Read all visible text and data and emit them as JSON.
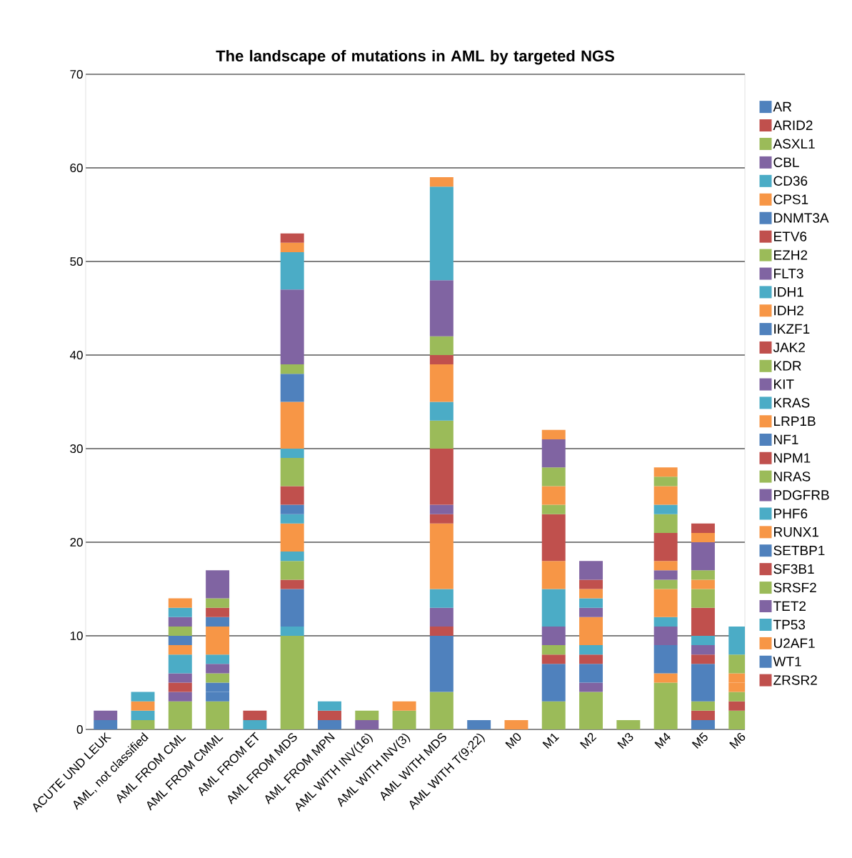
{
  "chart_data": {
    "type": "bar",
    "stacked": true,
    "title": "The landscape of mutations in AML by targeted NGS",
    "categories": [
      "ACUTE UND LEUK",
      "AML, not classified",
      "AML FROM CML",
      "AML FROM CMML",
      "AML FROM ET",
      "AML FROM MDS",
      "AML FROM MPN",
      "AML WITH INV(16)",
      "AML WITH INV(3)",
      "AML WITH MDS",
      "AML WITH T(9;22)",
      "M0",
      "M1",
      "M2",
      "M3",
      "M4",
      "M5",
      "M6"
    ],
    "ylim": [
      0,
      70
    ],
    "yticks": [
      0,
      10,
      20,
      30,
      40,
      50,
      60,
      70
    ],
    "grid": "y",
    "legend": "right",
    "series": [
      {
        "name": "AR",
        "color": "#4f81bd",
        "values": [
          1,
          null,
          null,
          null,
          null,
          null,
          1,
          null,
          null,
          null,
          1,
          null,
          null,
          null,
          null,
          null,
          1,
          null
        ]
      },
      {
        "name": "ARID2",
        "color": "#c0504d",
        "values": [
          null,
          null,
          null,
          null,
          null,
          null,
          1,
          null,
          null,
          null,
          null,
          null,
          null,
          null,
          null,
          null,
          1,
          null
        ]
      },
      {
        "name": "ASXL1",
        "color": "#9bbb59",
        "values": [
          null,
          1,
          3,
          3,
          null,
          10,
          null,
          null,
          2,
          4,
          null,
          null,
          3,
          4,
          1,
          5,
          1,
          2
        ]
      },
      {
        "name": "CBL",
        "color": "#8064a2",
        "values": [
          1,
          null,
          1,
          null,
          null,
          null,
          null,
          1,
          null,
          null,
          null,
          null,
          null,
          1,
          null,
          null,
          null,
          null
        ]
      },
      {
        "name": "CD36",
        "color": "#4bacc6",
        "values": [
          null,
          1,
          null,
          null,
          1,
          1,
          1,
          null,
          null,
          null,
          null,
          null,
          null,
          null,
          null,
          null,
          null,
          null
        ]
      },
      {
        "name": "CPS1",
        "color": "#f79646",
        "values": [
          null,
          1,
          null,
          null,
          null,
          null,
          null,
          null,
          1,
          null,
          null,
          1,
          null,
          null,
          null,
          1,
          null,
          null
        ]
      },
      {
        "name": "DNMT3A",
        "color": "#4f81bd",
        "values": [
          null,
          null,
          null,
          1,
          null,
          4,
          null,
          null,
          null,
          6,
          null,
          null,
          4,
          2,
          null,
          3,
          4,
          null
        ]
      },
      {
        "name": "ETV6",
        "color": "#c0504d",
        "values": [
          null,
          null,
          1,
          null,
          1,
          1,
          null,
          null,
          null,
          1,
          null,
          null,
          1,
          1,
          null,
          null,
          1,
          1
        ]
      },
      {
        "name": "EZH2",
        "color": "#9bbb59",
        "values": [
          null,
          null,
          null,
          null,
          null,
          2,
          null,
          1,
          null,
          null,
          null,
          null,
          1,
          null,
          null,
          null,
          null,
          1
        ]
      },
      {
        "name": "FLT3",
        "color": "#8064a2",
        "values": [
          null,
          null,
          1,
          null,
          null,
          null,
          null,
          null,
          null,
          2,
          null,
          null,
          2,
          null,
          null,
          2,
          1,
          null
        ]
      },
      {
        "name": "IDH1",
        "color": "#4bacc6",
        "values": [
          null,
          1,
          2,
          null,
          null,
          1,
          null,
          null,
          null,
          2,
          null,
          null,
          4,
          1,
          null,
          1,
          1,
          null
        ]
      },
      {
        "name": "IDH2",
        "color": "#f79646",
        "values": [
          null,
          null,
          1,
          null,
          null,
          3,
          null,
          null,
          null,
          7,
          null,
          null,
          3,
          3,
          null,
          3,
          null,
          1
        ]
      },
      {
        "name": "IKZF1",
        "color": "#4f81bd",
        "values": [
          null,
          null,
          1,
          1,
          null,
          null,
          null,
          null,
          null,
          null,
          null,
          null,
          null,
          null,
          null,
          null,
          null,
          null
        ]
      },
      {
        "name": "JAK2",
        "color": "#c0504d",
        "values": [
          null,
          null,
          null,
          null,
          null,
          null,
          null,
          null,
          null,
          1,
          null,
          null,
          5,
          null,
          null,
          null,
          3,
          null
        ]
      },
      {
        "name": "KDR",
        "color": "#9bbb59",
        "values": [
          null,
          null,
          1,
          1,
          null,
          null,
          null,
          null,
          null,
          null,
          null,
          null,
          1,
          null,
          null,
          1,
          2,
          null
        ]
      },
      {
        "name": "KIT",
        "color": "#8064a2",
        "values": [
          null,
          null,
          1,
          1,
          null,
          null,
          null,
          null,
          null,
          1,
          null,
          null,
          null,
          1,
          null,
          1,
          null,
          null
        ]
      },
      {
        "name": "KRAS",
        "color": "#4bacc6",
        "values": [
          null,
          null,
          1,
          1,
          null,
          1,
          null,
          null,
          null,
          null,
          null,
          null,
          null,
          1,
          null,
          null,
          null,
          null
        ]
      },
      {
        "name": "LRP1B",
        "color": "#f79646",
        "values": [
          null,
          null,
          1,
          3,
          null,
          null,
          null,
          null,
          null,
          null,
          null,
          null,
          2,
          1,
          null,
          1,
          1,
          1
        ]
      },
      {
        "name": "NF1",
        "color": "#4f81bd",
        "values": [
          null,
          null,
          null,
          1,
          null,
          1,
          null,
          null,
          null,
          null,
          null,
          null,
          null,
          null,
          null,
          null,
          null,
          null
        ]
      },
      {
        "name": "NPM1",
        "color": "#c0504d",
        "values": [
          null,
          null,
          null,
          1,
          null,
          2,
          null,
          null,
          null,
          6,
          null,
          null,
          null,
          1,
          null,
          3,
          null,
          null
        ]
      },
      {
        "name": "NRAS",
        "color": "#9bbb59",
        "values": [
          null,
          null,
          null,
          1,
          null,
          3,
          null,
          null,
          null,
          3,
          null,
          null,
          2,
          null,
          null,
          2,
          1,
          2
        ]
      },
      {
        "name": "PDGFRB",
        "color": "#8064a2",
        "values": [
          null,
          null,
          null,
          3,
          null,
          null,
          null,
          null,
          null,
          null,
          null,
          null,
          3,
          2,
          null,
          null,
          3,
          null
        ]
      },
      {
        "name": "PHF6",
        "color": "#4bacc6",
        "values": [
          null,
          null,
          null,
          null,
          null,
          1,
          null,
          null,
          null,
          2,
          null,
          null,
          null,
          null,
          null,
          1,
          null,
          3
        ]
      },
      {
        "name": "RUNX1",
        "color": "#f79646",
        "values": [
          null,
          null,
          null,
          null,
          null,
          5,
          null,
          null,
          null,
          4,
          null,
          null,
          1,
          null,
          null,
          2,
          1,
          null
        ]
      },
      {
        "name": "SETBP1",
        "color": "#4f81bd",
        "values": [
          null,
          null,
          null,
          null,
          null,
          3,
          null,
          null,
          null,
          null,
          null,
          null,
          null,
          null,
          null,
          null,
          null,
          null
        ]
      },
      {
        "name": "SF3B1",
        "color": "#c0504d",
        "values": [
          null,
          null,
          null,
          null,
          null,
          null,
          null,
          null,
          null,
          1,
          null,
          null,
          null,
          null,
          null,
          null,
          1,
          null
        ]
      },
      {
        "name": "SRSF2",
        "color": "#9bbb59",
        "values": [
          null,
          null,
          null,
          null,
          null,
          1,
          null,
          null,
          null,
          2,
          null,
          null,
          null,
          null,
          null,
          1,
          null,
          null
        ]
      },
      {
        "name": "TET2",
        "color": "#8064a2",
        "values": [
          null,
          null,
          null,
          null,
          null,
          8,
          null,
          null,
          null,
          6,
          null,
          null,
          null,
          null,
          null,
          null,
          null,
          null
        ]
      },
      {
        "name": "TP53",
        "color": "#4bacc6",
        "values": [
          null,
          null,
          null,
          null,
          null,
          4,
          null,
          null,
          null,
          10,
          null,
          null,
          null,
          null,
          null,
          null,
          null,
          null
        ]
      },
      {
        "name": "U2AF1",
        "color": "#f79646",
        "values": [
          null,
          null,
          null,
          null,
          null,
          1,
          null,
          null,
          null,
          1,
          null,
          null,
          null,
          null,
          null,
          1,
          null,
          null
        ]
      },
      {
        "name": "WT1",
        "color": "#4f81bd",
        "values": [
          null,
          null,
          null,
          null,
          null,
          null,
          null,
          null,
          null,
          null,
          null,
          null,
          null,
          null,
          null,
          null,
          null,
          null
        ]
      },
      {
        "name": "ZRSR2",
        "color": "#c0504d",
        "values": [
          null,
          null,
          null,
          null,
          null,
          1,
          null,
          null,
          null,
          null,
          null,
          null,
          null,
          null,
          null,
          null,
          null,
          null
        ]
      }
    ]
  }
}
